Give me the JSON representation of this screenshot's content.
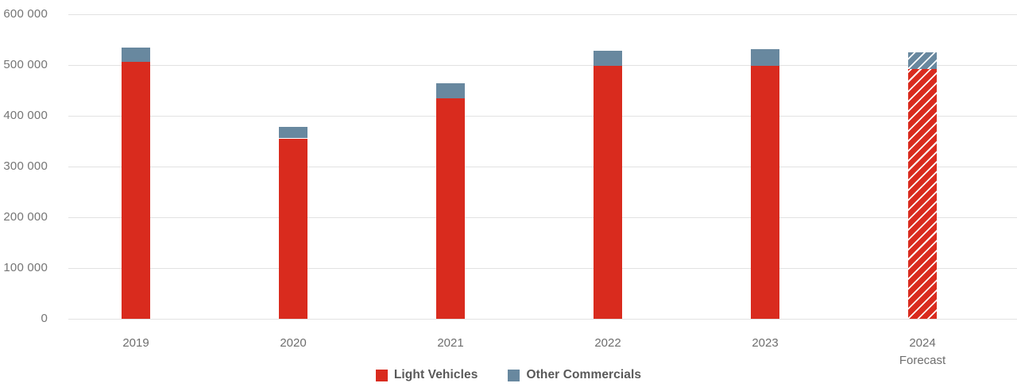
{
  "chart_data": {
    "type": "bar",
    "stacked": true,
    "title": "",
    "xlabel": "",
    "ylabel": "",
    "categories": [
      "2019",
      "2020",
      "2021",
      "2022",
      "2023",
      "2024 Forecast"
    ],
    "category_labels": [
      [
        "2019"
      ],
      [
        "2020"
      ],
      [
        "2021"
      ],
      [
        "2022"
      ],
      [
        "2023"
      ],
      [
        "2024",
        "Forecast"
      ]
    ],
    "series": [
      {
        "name": "Light Vehicles",
        "color": "#d92b1e",
        "values": [
          506000,
          355000,
          434000,
          498000,
          498000,
          492000
        ]
      },
      {
        "name": "Other Commercials",
        "color": "#68889f",
        "values": [
          28000,
          23000,
          30000,
          30000,
          32000,
          33000
        ]
      }
    ],
    "totals": [
      534000,
      378000,
      464000,
      528000,
      530000,
      525000
    ],
    "forecast_index": 5,
    "forecast_style": "diagonal-hatch",
    "ylim": [
      0,
      600000
    ],
    "ytick_step": 100000,
    "ytick_labels": [
      "600 000",
      "500 000",
      "400 000",
      "300 000",
      "200 000",
      "100 000",
      "0"
    ],
    "grid": true,
    "legend_position": "bottom",
    "colors": {
      "gridline": "#e2e2e2",
      "ytick_text": "#757575",
      "xtick_text": "#6e6e6e",
      "legend_text": "#595959",
      "background": "#ffffff",
      "hatch_stripe": "#ffffff"
    }
  }
}
